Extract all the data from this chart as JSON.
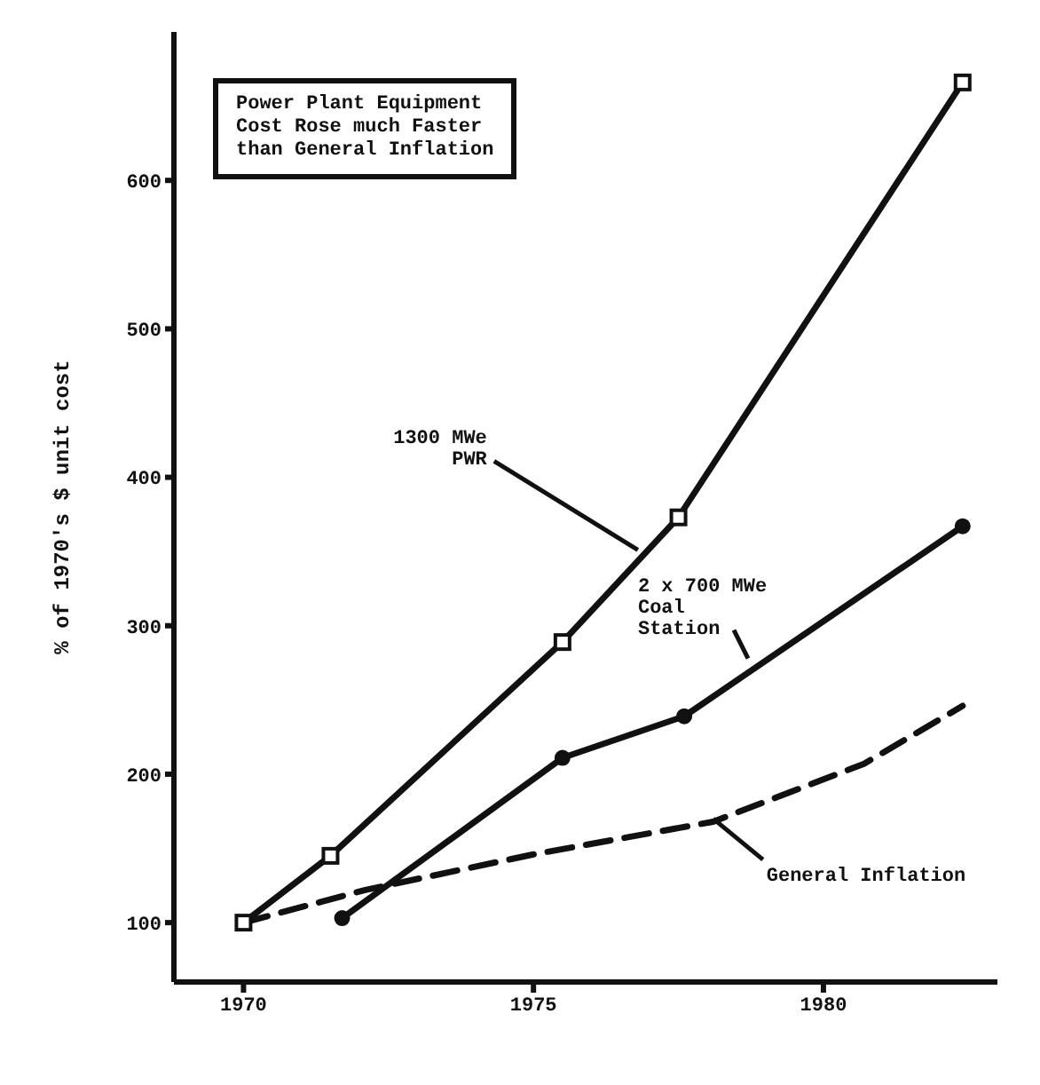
{
  "chart_data": {
    "type": "line",
    "ylabel": "% of 1970's $ unit cost",
    "xlim": [
      1968.8,
      1983
    ],
    "xticks": [
      1970,
      1975,
      1980
    ],
    "ylim": [
      60,
      700
    ],
    "yticks": [
      100,
      200,
      300,
      400,
      500,
      600
    ],
    "grid": false,
    "legend": false,
    "series": [
      {
        "color": "#111111",
        "marker": "square",
        "line_style": "solid",
        "x": [
          1970,
          1971.5,
          1975.5,
          1977.5,
          1982.4
        ],
        "values": [
          100,
          145,
          289,
          373,
          666
        ]
      },
      {
        "color": "#111111",
        "marker": "circle",
        "line_style": "solid",
        "x": [
          1971.7,
          1975.5,
          1977.6,
          1982.4
        ],
        "values": [
          103,
          211,
          239,
          367
        ]
      },
      {
        "color": "#111111",
        "marker": "none",
        "line_style": "dashed",
        "x": [
          1970,
          1972.1,
          1975,
          1978.1,
          1980.7,
          1982.4
        ],
        "values": [
          100,
          122,
          146,
          168,
          207,
          246
        ]
      }
    ],
    "annotations": [
      "Power Plant Equipment\nCost Rose much Faster\nthan General Inflation",
      {
        "text": "1300 MWe\nPWR",
        "x": 1976.8,
        "y": 351
      },
      {
        "text": "2 x 700 MWe\nCoal\nStation",
        "x": 1978.7,
        "y": 278
      },
      {
        "text": "General Inflation",
        "x": 1978.1,
        "y": 170
      }
    ]
  }
}
